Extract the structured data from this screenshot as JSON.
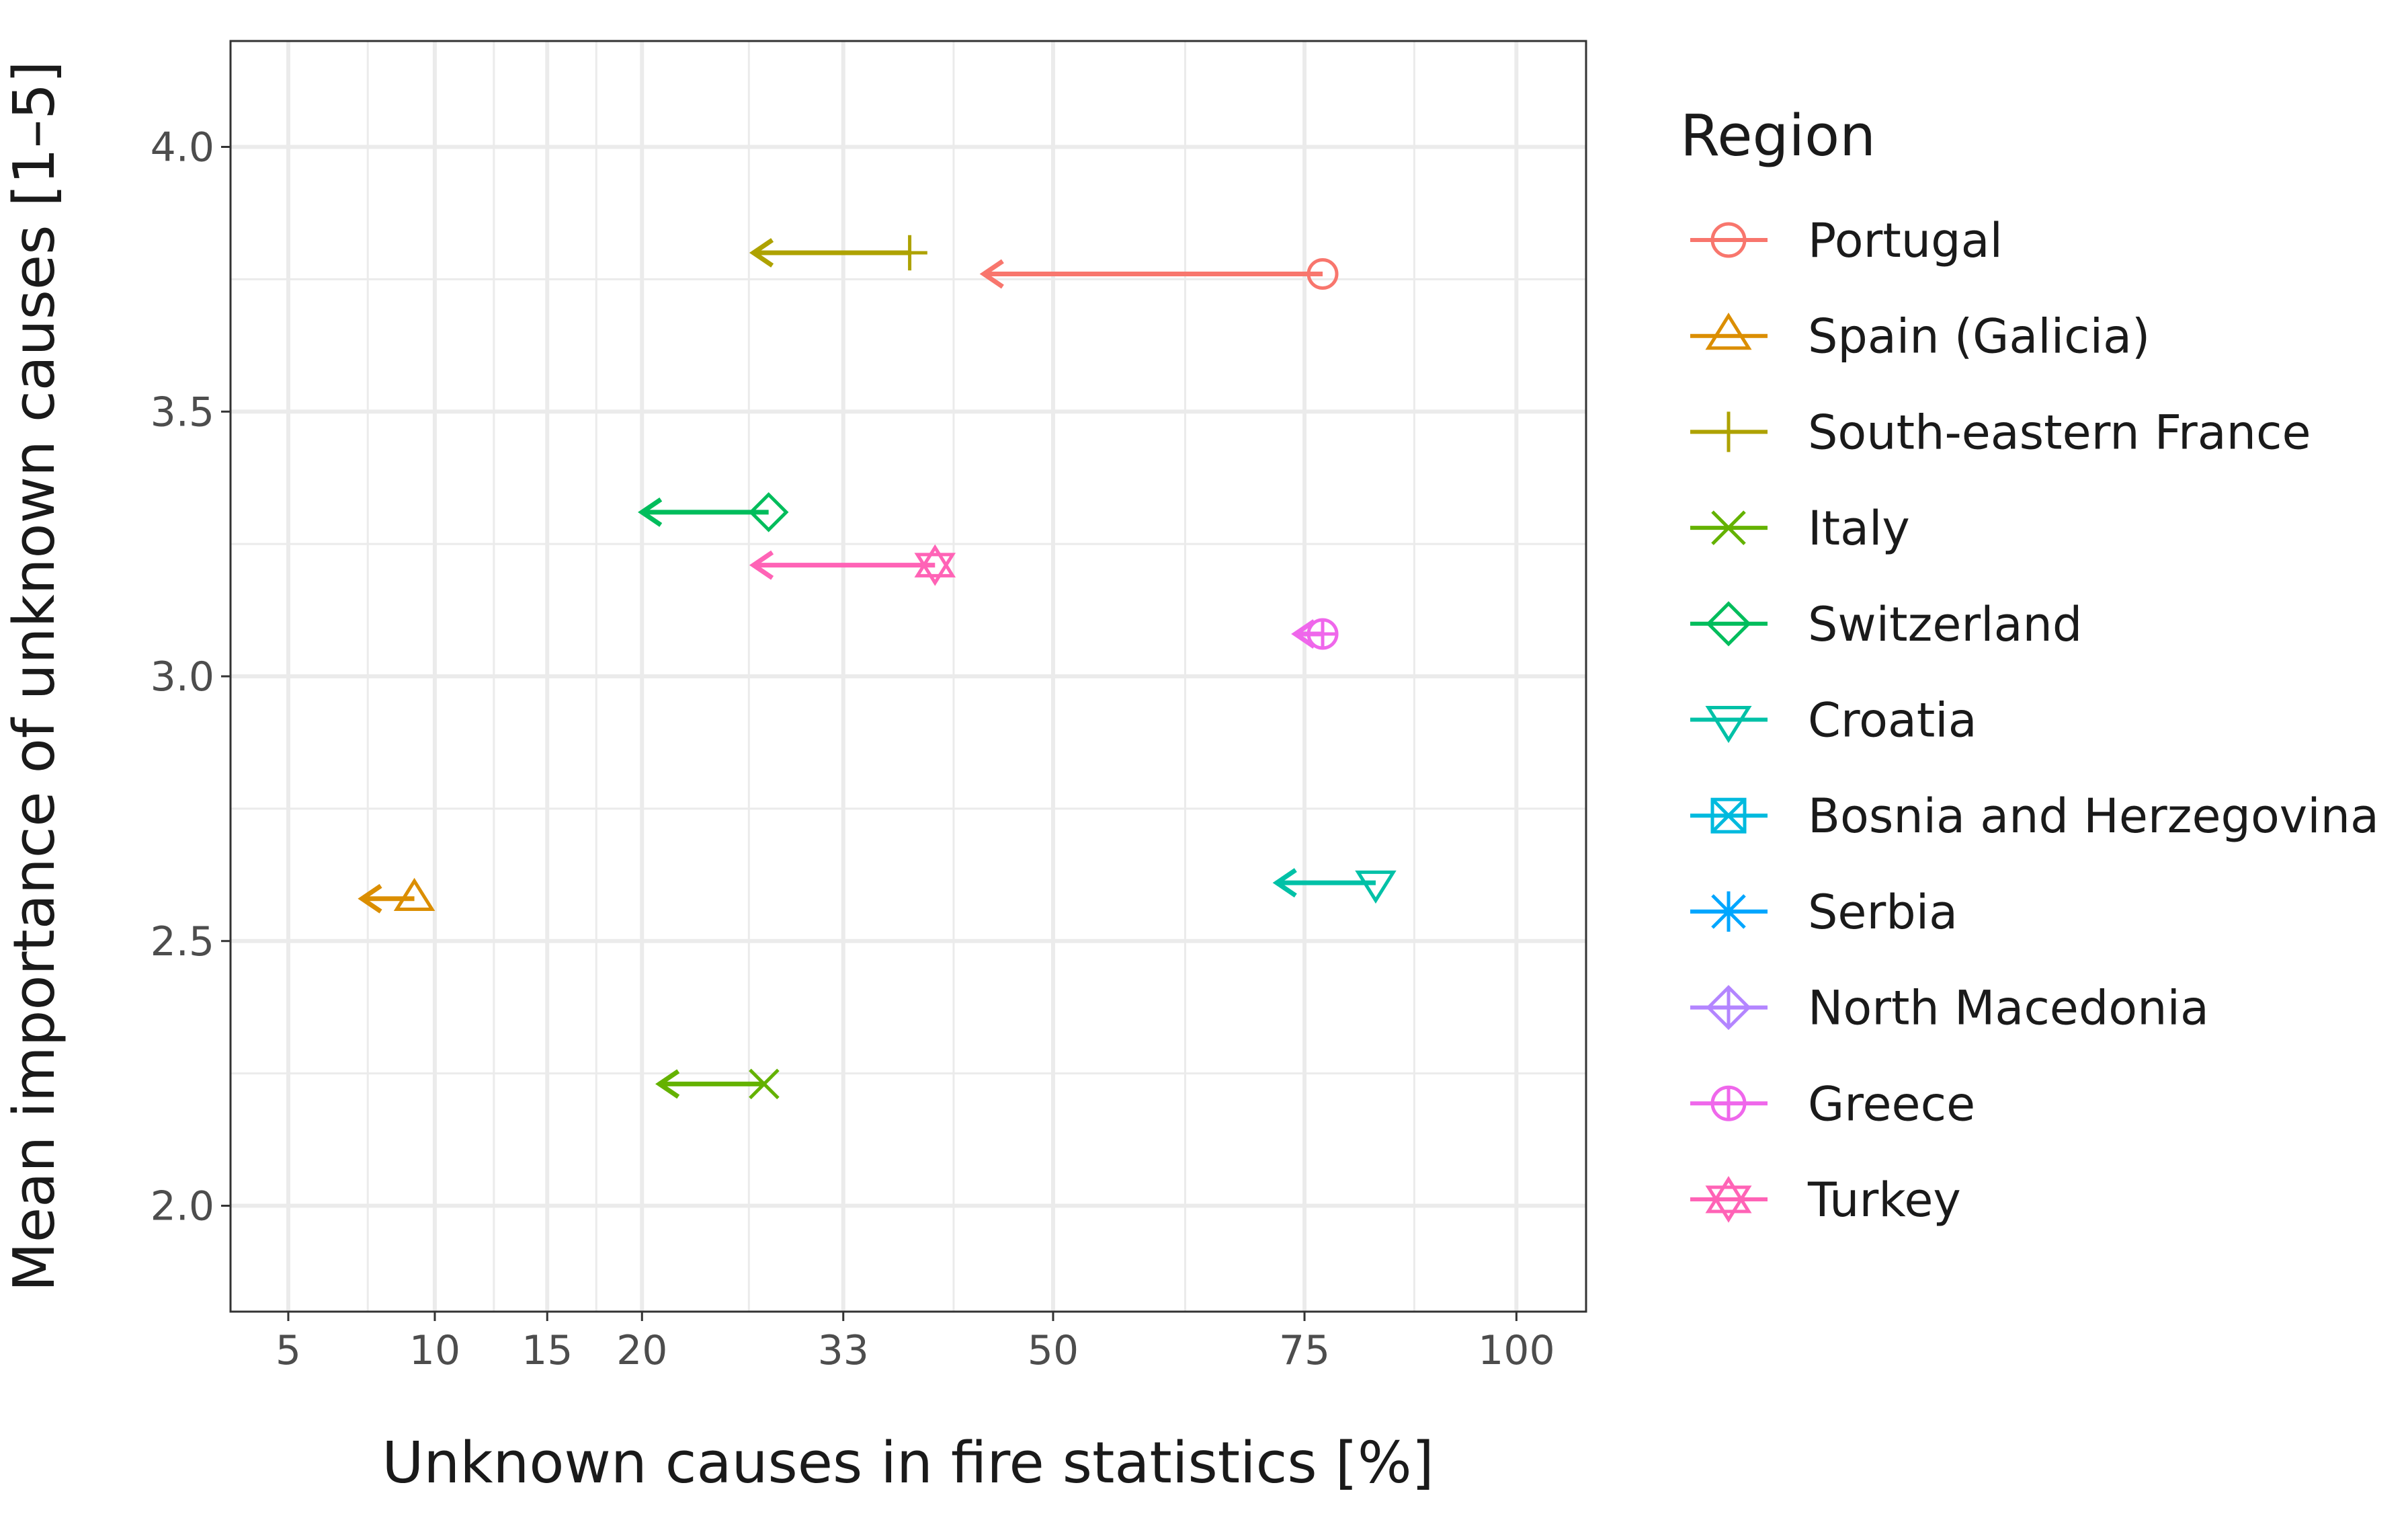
{
  "chart_data": {
    "type": "scatter",
    "title": "",
    "xlabel": "Unknown causes in fire statistics [%]",
    "ylabel": "Mean importance of unknown causes [1–5]",
    "x_scale": "sqrt",
    "xlim": [
      3.5,
      109
    ],
    "ylim": [
      1.8,
      4.2
    ],
    "x_ticks": [
      5,
      10,
      15,
      20,
      33,
      50,
      75,
      100
    ],
    "x_tick_labels": [
      "5",
      "10",
      "15",
      "20",
      "33",
      "50",
      "75",
      "100"
    ],
    "x_minor_gridlines": [
      7.5,
      12.5,
      17.5,
      26.5,
      41.5,
      62.5,
      87.5
    ],
    "y_ticks": [
      2.0,
      2.5,
      3.0,
      3.5,
      4.0
    ],
    "y_tick_labels": [
      "2.0",
      "2.5",
      "3.0",
      "3.5",
      "4.0"
    ],
    "y_minor_gridlines": [
      2.25,
      2.75,
      3.25,
      3.75
    ],
    "grid": true,
    "legend_title": "Region",
    "legend_position": "right",
    "series": [
      {
        "name": "Portugal",
        "color": "#F8766D",
        "shape": "circle-open",
        "x": 77,
        "y": 3.76,
        "arrow_to_x": 44
      },
      {
        "name": "Spain (Galicia)",
        "color": "#DB8E00",
        "shape": "triangle-open",
        "x": 9.2,
        "y": 2.58,
        "arrow_to_x": 7.3
      },
      {
        "name": "South-eastern France",
        "color": "#AEA200",
        "shape": "plus",
        "x": 38,
        "y": 3.8,
        "arrow_to_x": 26.8
      },
      {
        "name": "Italy",
        "color": "#64B200",
        "shape": "cross",
        "x": 27.5,
        "y": 2.23,
        "arrow_to_x": 21
      },
      {
        "name": "Switzerland",
        "color": "#00BD5C",
        "shape": "diamond-open",
        "x": 27.8,
        "y": 3.31,
        "arrow_to_x": 20
      },
      {
        "name": "Croatia",
        "color": "#00C1A7",
        "shape": "triangle-down-open",
        "x": 83,
        "y": 2.61,
        "arrow_to_x": 72
      },
      {
        "name": "Bosnia and Herzegovina",
        "color": "#00BADE",
        "shape": "square-cross",
        "x": null,
        "y": null,
        "arrow_to_x": null
      },
      {
        "name": "Serbia",
        "color": "#00A6FF",
        "shape": "asterisk",
        "x": null,
        "y": null,
        "arrow_to_x": null
      },
      {
        "name": "North Macedonia",
        "color": "#B385FF",
        "shape": "diamond-plus",
        "x": null,
        "y": null,
        "arrow_to_x": null
      },
      {
        "name": "Greece",
        "color": "#EF67EB",
        "shape": "circle-plus",
        "x": 77,
        "y": 3.08,
        "arrow_to_x": 74
      },
      {
        "name": "Turkey",
        "color": "#FF63B6",
        "shape": "star-of-david",
        "x": 40,
        "y": 3.21,
        "arrow_to_x": 26.8
      }
    ]
  }
}
